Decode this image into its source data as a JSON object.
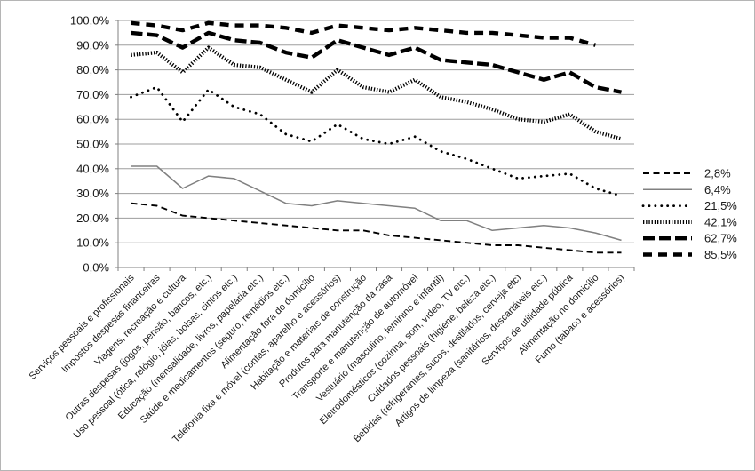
{
  "chart_data": {
    "type": "line",
    "title": "",
    "legend_position": "right",
    "grid": true,
    "x_axis": {
      "label_rotation_deg": 45
    },
    "y_axis": {
      "min": 0,
      "max": 100,
      "step": 10,
      "tick_format": "decimal-comma-percent"
    },
    "categories": [
      "Serviços pessoais e profissionais",
      "Impostos despesas financeiras",
      "Viagens, recreação e cultura",
      "Outras despesas (jogos, pensão, bancos, etc.)",
      "Uso pessoal (ótica, relógio, jóias, bolsas, cintos etc.)",
      "Educação (mensalidade, livros, papelaria etc.)",
      "Saúde e medicamentos (seguro, remédios etc.)",
      "Alimentação fora do domicílio",
      "Telefonia fixa e móvel (contas, aparelho e acessórios)",
      "Habitação e materiais de construção",
      "Produtos para manutenção da casa",
      "Transporte e manutenção de automóvel",
      "Vestuário (masculino, feminino e infantil)",
      "Eletrodomésticos (cozinha, som, vídeo, TV etc.)",
      "Cuidados pessoais (higiene, beleza etc.)",
      "Bebidas (refrigerantes, sucos, destilados, cerveja etc)",
      "Artigos de limpeza (sanitários, descartáveis etc.)",
      "Serviços de utilidade pública",
      "Alimentação no domicílio",
      "Fumo (tabaco e acessórios)"
    ],
    "series": [
      {
        "name": "2,8%",
        "line_style": "dashed-thin",
        "color": "#000000",
        "values": [
          26,
          25,
          21,
          20,
          19,
          18,
          17,
          16,
          15,
          15,
          13,
          12,
          11,
          10,
          9,
          9,
          8,
          7,
          6,
          6
        ]
      },
      {
        "name": "6,4%",
        "line_style": "solid-thin",
        "color": "#808080",
        "values": [
          41,
          41,
          32,
          37,
          36,
          31,
          26,
          25,
          27,
          26,
          25,
          24,
          19,
          19,
          15,
          16,
          17,
          16,
          14,
          11
        ]
      },
      {
        "name": "21,5%",
        "line_style": "dotted",
        "color": "#000000",
        "values": [
          69,
          73,
          59,
          72,
          65,
          62,
          54,
          51,
          58,
          52,
          50,
          53,
          47,
          44,
          40,
          36,
          37,
          38,
          32,
          29
        ]
      },
      {
        "name": "42,1%",
        "line_style": "dense-ticks",
        "color": "#000000",
        "values": [
          86,
          87,
          79,
          89,
          82,
          81,
          76,
          71,
          80,
          73,
          71,
          76,
          69,
          67,
          64,
          60,
          59,
          62,
          55,
          52
        ]
      },
      {
        "name": "62,7%",
        "line_style": "bold-long-dash",
        "color": "#000000",
        "values": [
          95,
          94,
          89,
          95,
          92,
          91,
          87,
          85,
          92,
          89,
          86,
          89,
          84,
          83,
          82,
          79,
          76,
          79,
          73,
          71
        ]
      },
      {
        "name": "85,5%",
        "line_style": "bold-dash",
        "color": "#000000",
        "values": [
          99,
          98,
          96,
          99,
          98,
          98,
          97,
          95,
          98,
          97,
          96,
          97,
          96,
          95,
          95,
          94,
          93,
          93,
          90,
          null
        ]
      }
    ],
    "colors": {
      "gridline": "#9d9d9d",
      "axis": "#808080",
      "text": "#1a1a1a",
      "background": "#ffffff",
      "frame_border": "#b5b5b5"
    }
  }
}
